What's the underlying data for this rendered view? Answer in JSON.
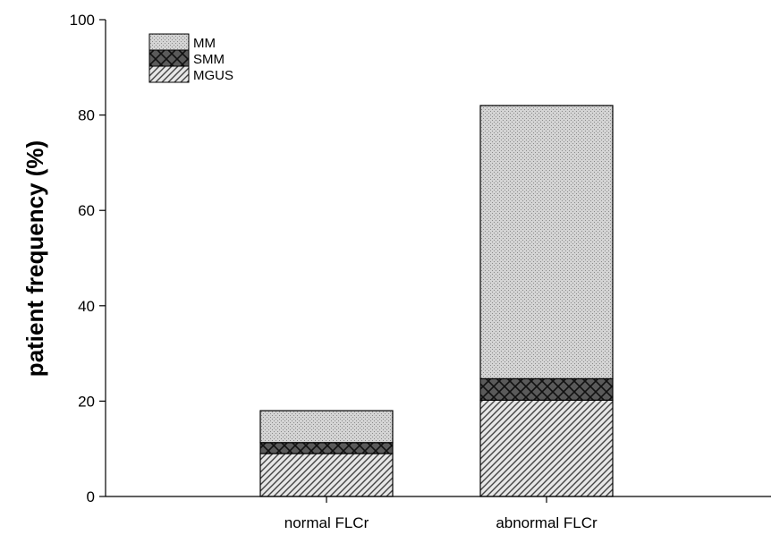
{
  "chart_data": {
    "type": "bar",
    "stacked": true,
    "categories": [
      "normal FLCr",
      "abnormal FLCr"
    ],
    "series": [
      {
        "name": "MGUS",
        "values": [
          9.0,
          20.2
        ],
        "pattern": "diagonal-hatch",
        "color": "#b8b8b8"
      },
      {
        "name": "SMM",
        "values": [
          2.3,
          4.5
        ],
        "pattern": "crosshatch",
        "color": "#4a4a4a"
      },
      {
        "name": "MM",
        "values": [
          6.7,
          57.3
        ],
        "pattern": "stipple",
        "color": "#c6c6c6"
      }
    ],
    "legend_order": [
      "MM",
      "SMM",
      "MGUS"
    ],
    "legend_position": "top-left",
    "title": "",
    "xlabel": "",
    "ylabel": "patient   frequency (%)",
    "ylim": [
      0,
      100
    ],
    "yticks": [
      0,
      20,
      40,
      60,
      80,
      100
    ],
    "grid": false
  }
}
